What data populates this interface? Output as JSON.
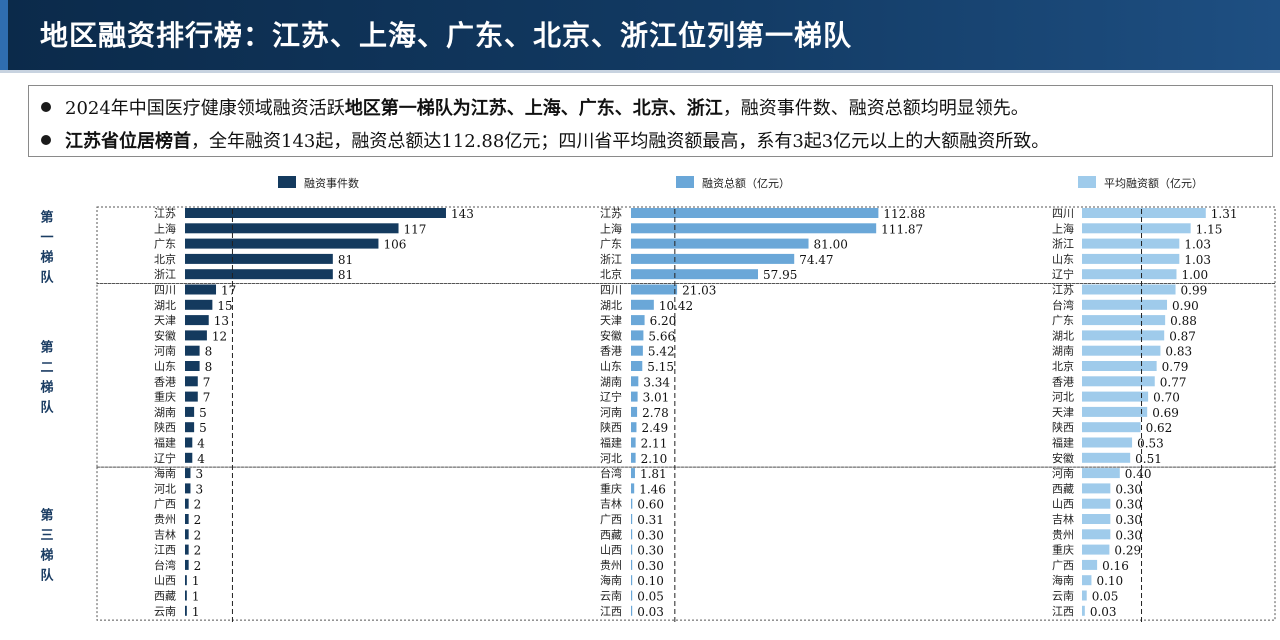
{
  "header": {
    "title": "地区融资排行榜：江苏、上海、广东、北京、浙江位列第一梯队"
  },
  "summary": {
    "bullet1": [
      {
        "text": "2024年中国医疗健康领域融资活跃",
        "bold": false
      },
      {
        "text": "地区第一梯队为江苏、上海、广东、北京、浙江",
        "bold": true
      },
      {
        "text": "，融资事件数、融资总额均明显领先。",
        "bold": false
      }
    ],
    "bullet2": [
      {
        "text": "江苏省位居榜首",
        "bold": true
      },
      {
        "text": "，全年融资143起，融资总额达112.88亿元；四川省平均融资额最高，系有3起3亿元以上的大额融资所致。",
        "bold": false
      }
    ]
  },
  "tiers": [
    {
      "label": "第一梯队",
      "count": 5
    },
    {
      "label": "第二梯队",
      "count": 12
    },
    {
      "label": "第三梯队",
      "count": 10
    }
  ],
  "colors": {
    "count": "#143a5e",
    "total": "#6aa7d8",
    "avg": "#9fcbeb",
    "title_bg": "#0b2a4a"
  },
  "chart_data": [
    {
      "type": "bar",
      "orientation": "horizontal",
      "legend": "融资事件数",
      "categories": [
        "江苏",
        "上海",
        "广东",
        "北京",
        "浙江",
        "四川",
        "湖北",
        "天津",
        "安徽",
        "河南",
        "山东",
        "香港",
        "重庆",
        "湖南",
        "陕西",
        "福建",
        "辽宁",
        "海南",
        "河北",
        "广西",
        "贵州",
        "吉林",
        "江西",
        "台湾",
        "山西",
        "西藏",
        "云南"
      ],
      "values": [
        143,
        117,
        106,
        81,
        81,
        17,
        15,
        13,
        12,
        8,
        8,
        7,
        7,
        5,
        5,
        4,
        4,
        3,
        3,
        2,
        2,
        2,
        2,
        2,
        1,
        1,
        1
      ],
      "labels": [
        "143",
        "117",
        "106",
        "81",
        "81",
        "17",
        "15",
        "13",
        "12",
        "8",
        "8",
        "7",
        "7",
        "5",
        "5",
        "4",
        "4",
        "3",
        "3",
        "2",
        "2",
        "2",
        "2",
        "2",
        "1",
        "1",
        "1"
      ],
      "xlim": [
        0,
        160
      ],
      "reference_line": 26
    },
    {
      "type": "bar",
      "orientation": "horizontal",
      "legend": "融资总额（亿元）",
      "categories": [
        "江苏",
        "上海",
        "广东",
        "浙江",
        "北京",
        "四川",
        "湖北",
        "天津",
        "安徽",
        "香港",
        "山东",
        "湖南",
        "辽宁",
        "河南",
        "陕西",
        "福建",
        "河北",
        "台湾",
        "重庆",
        "吉林",
        "广西",
        "西藏",
        "山西",
        "贵州",
        "海南",
        "云南",
        "江西"
      ],
      "values": [
        112.88,
        111.87,
        81.0,
        74.47,
        57.95,
        21.03,
        10.42,
        6.2,
        5.66,
        5.42,
        5.15,
        3.34,
        3.01,
        2.78,
        2.49,
        2.11,
        2.1,
        1.81,
        1.46,
        0.6,
        0.31,
        0.3,
        0.3,
        0.3,
        0.1,
        0.05,
        0.03
      ],
      "labels": [
        "112.88",
        "111.87",
        "81.00",
        "74.47",
        "57.95",
        "21.03",
        "10.42",
        "6.20",
        "5.66",
        "5.42",
        "5.15",
        "3.34",
        "3.01",
        "2.78",
        "2.49",
        "2.11",
        "2.10",
        "1.81",
        "1.46",
        "0.60",
        "0.31",
        "0.30",
        "0.30",
        "0.30",
        "0.10",
        "0.05",
        "0.03"
      ],
      "xlim": [
        0,
        120
      ],
      "reference_line": 20
    },
    {
      "type": "bar",
      "orientation": "horizontal",
      "legend": "平均融资额（亿元）",
      "categories": [
        "四川",
        "上海",
        "浙江",
        "山东",
        "辽宁",
        "江苏",
        "台湾",
        "广东",
        "湖北",
        "湖南",
        "北京",
        "香港",
        "河北",
        "天津",
        "陕西",
        "福建",
        "安徽",
        "河南",
        "西藏",
        "山西",
        "吉林",
        "贵州",
        "重庆",
        "广西",
        "海南",
        "云南",
        "江西"
      ],
      "values": [
        1.31,
        1.15,
        1.03,
        1.03,
        1.0,
        0.99,
        0.9,
        0.88,
        0.87,
        0.83,
        0.79,
        0.77,
        0.7,
        0.69,
        0.62,
        0.53,
        0.51,
        0.4,
        0.3,
        0.3,
        0.3,
        0.3,
        0.29,
        0.16,
        0.1,
        0.05,
        0.03
      ],
      "labels": [
        "1.31",
        "1.15",
        "1.03",
        "1.03",
        "1.00",
        "0.99",
        "0.90",
        "0.88",
        "0.87",
        "0.83",
        "0.79",
        "0.77",
        "0.70",
        "0.69",
        "0.62",
        "0.53",
        "0.51",
        "0.40",
        "0.30",
        "0.30",
        "0.30",
        "0.30",
        "0.29",
        "0.16",
        "0.10",
        "0.05",
        "0.03"
      ],
      "xlim": [
        0,
        1.45
      ],
      "reference_line": 0.63
    }
  ]
}
